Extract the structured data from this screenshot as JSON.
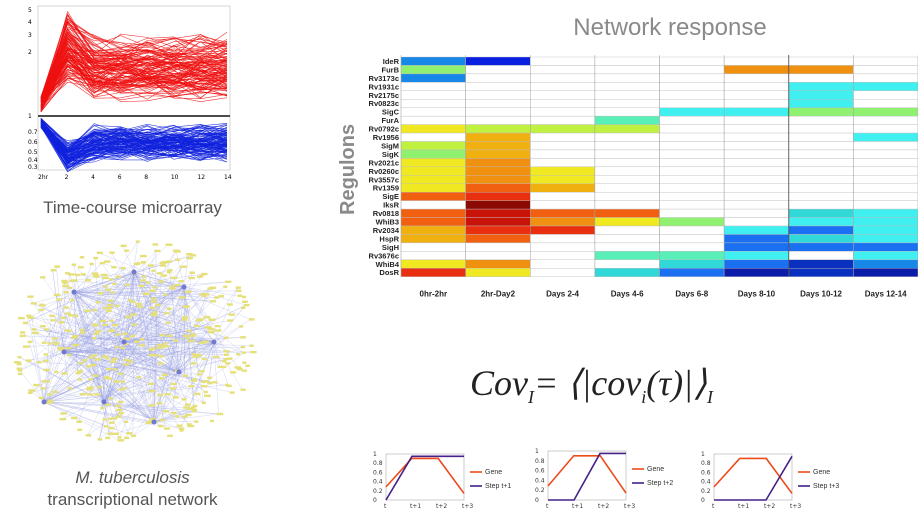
{
  "microarray": {
    "caption": "Time-course microarray",
    "y_ticks": [
      "5",
      "4",
      "3",
      "2",
      "1",
      "0.7",
      "0.6",
      "0.5",
      "0.4",
      "0.3"
    ],
    "x_ticks": [
      "2hr",
      "2",
      "4",
      "6",
      "8",
      "10",
      "12",
      "14"
    ],
    "colors": {
      "up": "#ee1111",
      "down": "#1122dd",
      "baseline": "#111111"
    }
  },
  "network": {
    "caption_species": "M. tuberculosis",
    "caption_rest": "transcriptional network",
    "colors": {
      "node": "#e6e07a",
      "edge": "#9aa0e0"
    }
  },
  "heatmap": {
    "title": "Network response",
    "y_axis_label": "Regulons",
    "columns": [
      "0hr-2hr",
      "2hr-Day2",
      "Days 2-4",
      "Days 4-6",
      "Days 6-8",
      "Days 8-10",
      "Days 10-12",
      "Days 12-14"
    ],
    "rows": [
      "IdeR",
      "FurB",
      "Rv3173c",
      "Rv1931c",
      "Rv2175c",
      "Rv0823c",
      "SigC",
      "FurA",
      "Rv0792c",
      "Rv1956",
      "SigM",
      "SigK",
      "Rv2021c",
      "Rv0260c",
      "Rv3557c",
      "Rv1359",
      "SigE",
      "IksR",
      "Rv0818",
      "WhiB3",
      "Rv2034",
      "HspR",
      "SigH",
      "Rv3676c",
      "WhiB4",
      "DosR"
    ],
    "palette": {
      "w": "#ffffff",
      "B": "#0a20e0",
      "b": "#1888e8",
      "c": "#40f0f0",
      "t": "#30d8d8",
      "n": "#1a70f0",
      "N": "#0a30c0",
      "k": "#0a1ca8",
      "m": "#58f0b8",
      "g": "#90f070",
      "l": "#c0f040",
      "y": "#f0e820",
      "o": "#f0b010",
      "O": "#f09010",
      "r": "#f06010",
      "R": "#e83010",
      "d": "#c81408",
      "D": "#8c0a04"
    },
    "cells": [
      [
        "b",
        "B",
        "w",
        "w",
        "w",
        "w",
        "w",
        "w"
      ],
      [
        "g",
        "w",
        "w",
        "w",
        "w",
        "O",
        "O",
        "w"
      ],
      [
        "b",
        "w",
        "w",
        "w",
        "w",
        "w",
        "w",
        "w"
      ],
      [
        "w",
        "w",
        "w",
        "w",
        "w",
        "w",
        "c",
        "c"
      ],
      [
        "w",
        "w",
        "w",
        "w",
        "w",
        "w",
        "c",
        "w"
      ],
      [
        "w",
        "w",
        "w",
        "w",
        "w",
        "w",
        "c",
        "w"
      ],
      [
        "w",
        "w",
        "w",
        "w",
        "c",
        "c",
        "g",
        "g"
      ],
      [
        "w",
        "w",
        "w",
        "m",
        "w",
        "w",
        "w",
        "w"
      ],
      [
        "y",
        "l",
        "l",
        "l",
        "w",
        "w",
        "w",
        "w"
      ],
      [
        "w",
        "o",
        "w",
        "w",
        "w",
        "w",
        "w",
        "c"
      ],
      [
        "l",
        "o",
        "w",
        "w",
        "w",
        "w",
        "w",
        "w"
      ],
      [
        "g",
        "o",
        "w",
        "w",
        "w",
        "w",
        "w",
        "w"
      ],
      [
        "y",
        "O",
        "w",
        "w",
        "w",
        "w",
        "w",
        "w"
      ],
      [
        "y",
        "O",
        "y",
        "w",
        "w",
        "w",
        "w",
        "w"
      ],
      [
        "y",
        "O",
        "y",
        "w",
        "w",
        "w",
        "w",
        "w"
      ],
      [
        "y",
        "r",
        "o",
        "w",
        "w",
        "w",
        "w",
        "w"
      ],
      [
        "r",
        "R",
        "w",
        "w",
        "w",
        "w",
        "w",
        "w"
      ],
      [
        "w",
        "D",
        "w",
        "w",
        "w",
        "w",
        "w",
        "w"
      ],
      [
        "r",
        "d",
        "r",
        "r",
        "w",
        "w",
        "t",
        "c"
      ],
      [
        "r",
        "d",
        "O",
        "y",
        "g",
        "w",
        "c",
        "c"
      ],
      [
        "o",
        "R",
        "R",
        "w",
        "w",
        "c",
        "n",
        "c"
      ],
      [
        "o",
        "r",
        "w",
        "w",
        "w",
        "n",
        "t",
        "c"
      ],
      [
        "w",
        "w",
        "w",
        "w",
        "w",
        "n",
        "n",
        "n"
      ],
      [
        "w",
        "w",
        "w",
        "m",
        "m",
        "c",
        "w",
        "c"
      ],
      [
        "y",
        "O",
        "w",
        "w",
        "t",
        "n",
        "N",
        "b"
      ],
      [
        "R",
        "y",
        "w",
        "t",
        "n",
        "k",
        "N",
        "k"
      ]
    ]
  },
  "formula": {
    "lhs": "Cov",
    "lhs_sub": "I",
    "eq": "= ⟨|",
    "func": "cov",
    "func_sub": "i",
    "arg": "(τ)",
    "close": "|⟩",
    "close_sub": "I"
  },
  "step_plots": [
    {
      "legend_a": "Gene",
      "legend_b": "Step t+1",
      "y_ticks": [
        "1",
        "0.8",
        "0.6",
        "0.4",
        "0.2",
        "0"
      ],
      "x_ticks": [
        "t",
        "t+1",
        "t+2",
        "t+3"
      ],
      "step_x": 0.333,
      "colors": {
        "gene": "#ee4a1a",
        "step": "#442288"
      }
    },
    {
      "legend_a": "Gene",
      "legend_b": "Step t+2",
      "y_ticks": [
        "1",
        "0.8",
        "0.6",
        "0.4",
        "0.2",
        "0"
      ],
      "x_ticks": [
        "t",
        "t+1",
        "t+2",
        "t+3"
      ],
      "step_x": 0.667,
      "colors": {
        "gene": "#ee4a1a",
        "step": "#442288"
      }
    },
    {
      "legend_a": "Gene",
      "legend_b": "Step t+3",
      "y_ticks": [
        "1",
        "0.8",
        "0.6",
        "0.4",
        "0.2",
        "0"
      ],
      "x_ticks": [
        "t",
        "t+1",
        "t+2",
        "t+3"
      ],
      "step_x": 1.0,
      "colors": {
        "gene": "#ee4a1a",
        "step": "#442288"
      }
    }
  ]
}
